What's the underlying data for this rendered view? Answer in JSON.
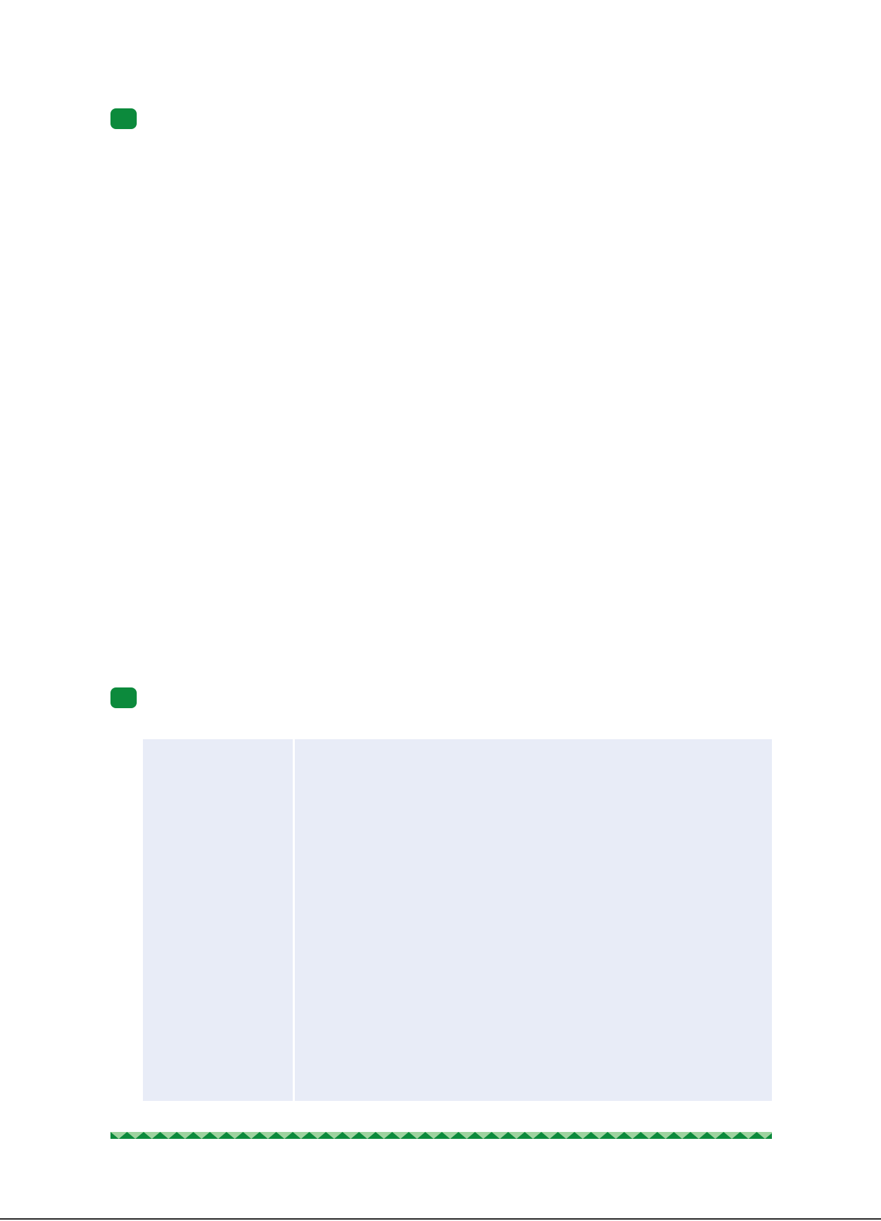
{
  "colors": {
    "page_background": "#ffffff",
    "section_marker": "#0c8a3c",
    "table_fill": "#e8ecf7",
    "stripe_dark": "#0c8a3c",
    "stripe_light": "#9ed39f",
    "bottom_rule": "#222222"
  },
  "sections": [
    {
      "marker_icon": "green-rounded-square"
    },
    {
      "marker_icon": "green-rounded-square"
    }
  ],
  "footer": {
    "decoration": "zigzag-stripe"
  }
}
